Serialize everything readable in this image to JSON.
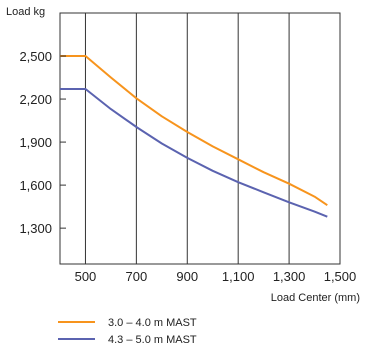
{
  "chart_data": {
    "type": "line",
    "xlabel": "Load Center (mm)",
    "ylabel": "Load kg",
    "xlim": [
      400,
      1500
    ],
    "ylim": [
      1050,
      2800
    ],
    "x_ticks": [
      500,
      700,
      900,
      1100,
      1300,
      1500
    ],
    "x_tick_labels": [
      "500",
      "700",
      "900",
      "1,100",
      "1,300",
      "1,500"
    ],
    "y_ticks": [
      2500,
      2200,
      1900,
      1600,
      1300
    ],
    "y_tick_labels": [
      "2,500",
      "2,200",
      "1,900",
      "1,600",
      "1,300"
    ],
    "grid": "vertical",
    "legend_position": "bottom-left",
    "series": [
      {
        "name": "3.0 – 4.0 m MAST",
        "color": "#f7941d",
        "x": [
          400,
          500,
          600,
          700,
          800,
          900,
          1000,
          1100,
          1200,
          1300,
          1400,
          1450
        ],
        "y": [
          2500,
          2500,
          2350,
          2205,
          2080,
          1970,
          1870,
          1780,
          1690,
          1610,
          1520,
          1460
        ]
      },
      {
        "name": "4.3 – 5.0 m MAST",
        "color": "#5b63b0",
        "x": [
          400,
          500,
          600,
          700,
          800,
          900,
          1000,
          1100,
          1200,
          1300,
          1400,
          1450
        ],
        "y": [
          2270,
          2270,
          2130,
          2005,
          1890,
          1790,
          1700,
          1620,
          1550,
          1480,
          1415,
          1380
        ]
      }
    ]
  }
}
